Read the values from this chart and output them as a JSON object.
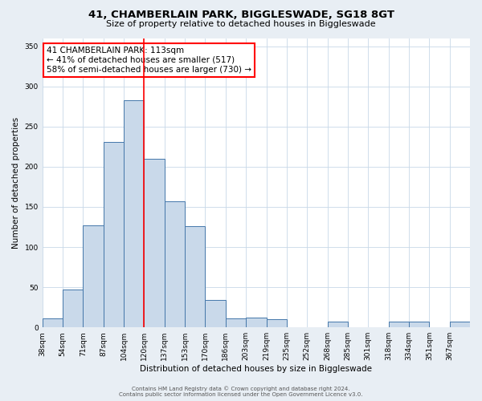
{
  "title": "41, CHAMBERLAIN PARK, BIGGLESWADE, SG18 8GT",
  "subtitle": "Size of property relative to detached houses in Biggleswade",
  "xlabel": "Distribution of detached houses by size in Biggleswade",
  "ylabel": "Number of detached properties",
  "bin_labels": [
    "38sqm",
    "54sqm",
    "71sqm",
    "87sqm",
    "104sqm",
    "120sqm",
    "137sqm",
    "153sqm",
    "170sqm",
    "186sqm",
    "203sqm",
    "219sqm",
    "235sqm",
    "252sqm",
    "268sqm",
    "285sqm",
    "301sqm",
    "318sqm",
    "334sqm",
    "351sqm",
    "367sqm"
  ],
  "bar_heights": [
    11,
    47,
    127,
    231,
    283,
    210,
    157,
    126,
    34,
    11,
    12,
    10,
    0,
    0,
    7,
    0,
    0,
    7,
    7,
    0,
    7
  ],
  "bar_color": "#c9d9ea",
  "bar_edge_color": "#4477aa",
  "ylim": [
    0,
    360
  ],
  "yticks": [
    0,
    50,
    100,
    150,
    200,
    250,
    300,
    350
  ],
  "red_line_bin_index": 5,
  "annotation_title": "41 CHAMBERLAIN PARK: 113sqm",
  "annotation_line1": "← 41% of detached houses are smaller (517)",
  "annotation_line2": "58% of semi-detached houses are larger (730) →",
  "footer1": "Contains HM Land Registry data © Crown copyright and database right 2024.",
  "footer2": "Contains public sector information licensed under the Open Government Licence v3.0.",
  "background_color": "#e8eef4",
  "plot_background_color": "#ffffff",
  "grid_color": "#c8d8e8",
  "title_fontsize": 9.5,
  "subtitle_fontsize": 8,
  "axis_label_fontsize": 7.5,
  "tick_fontsize": 6.5,
  "annotation_fontsize": 7.5,
  "footer_fontsize": 5
}
